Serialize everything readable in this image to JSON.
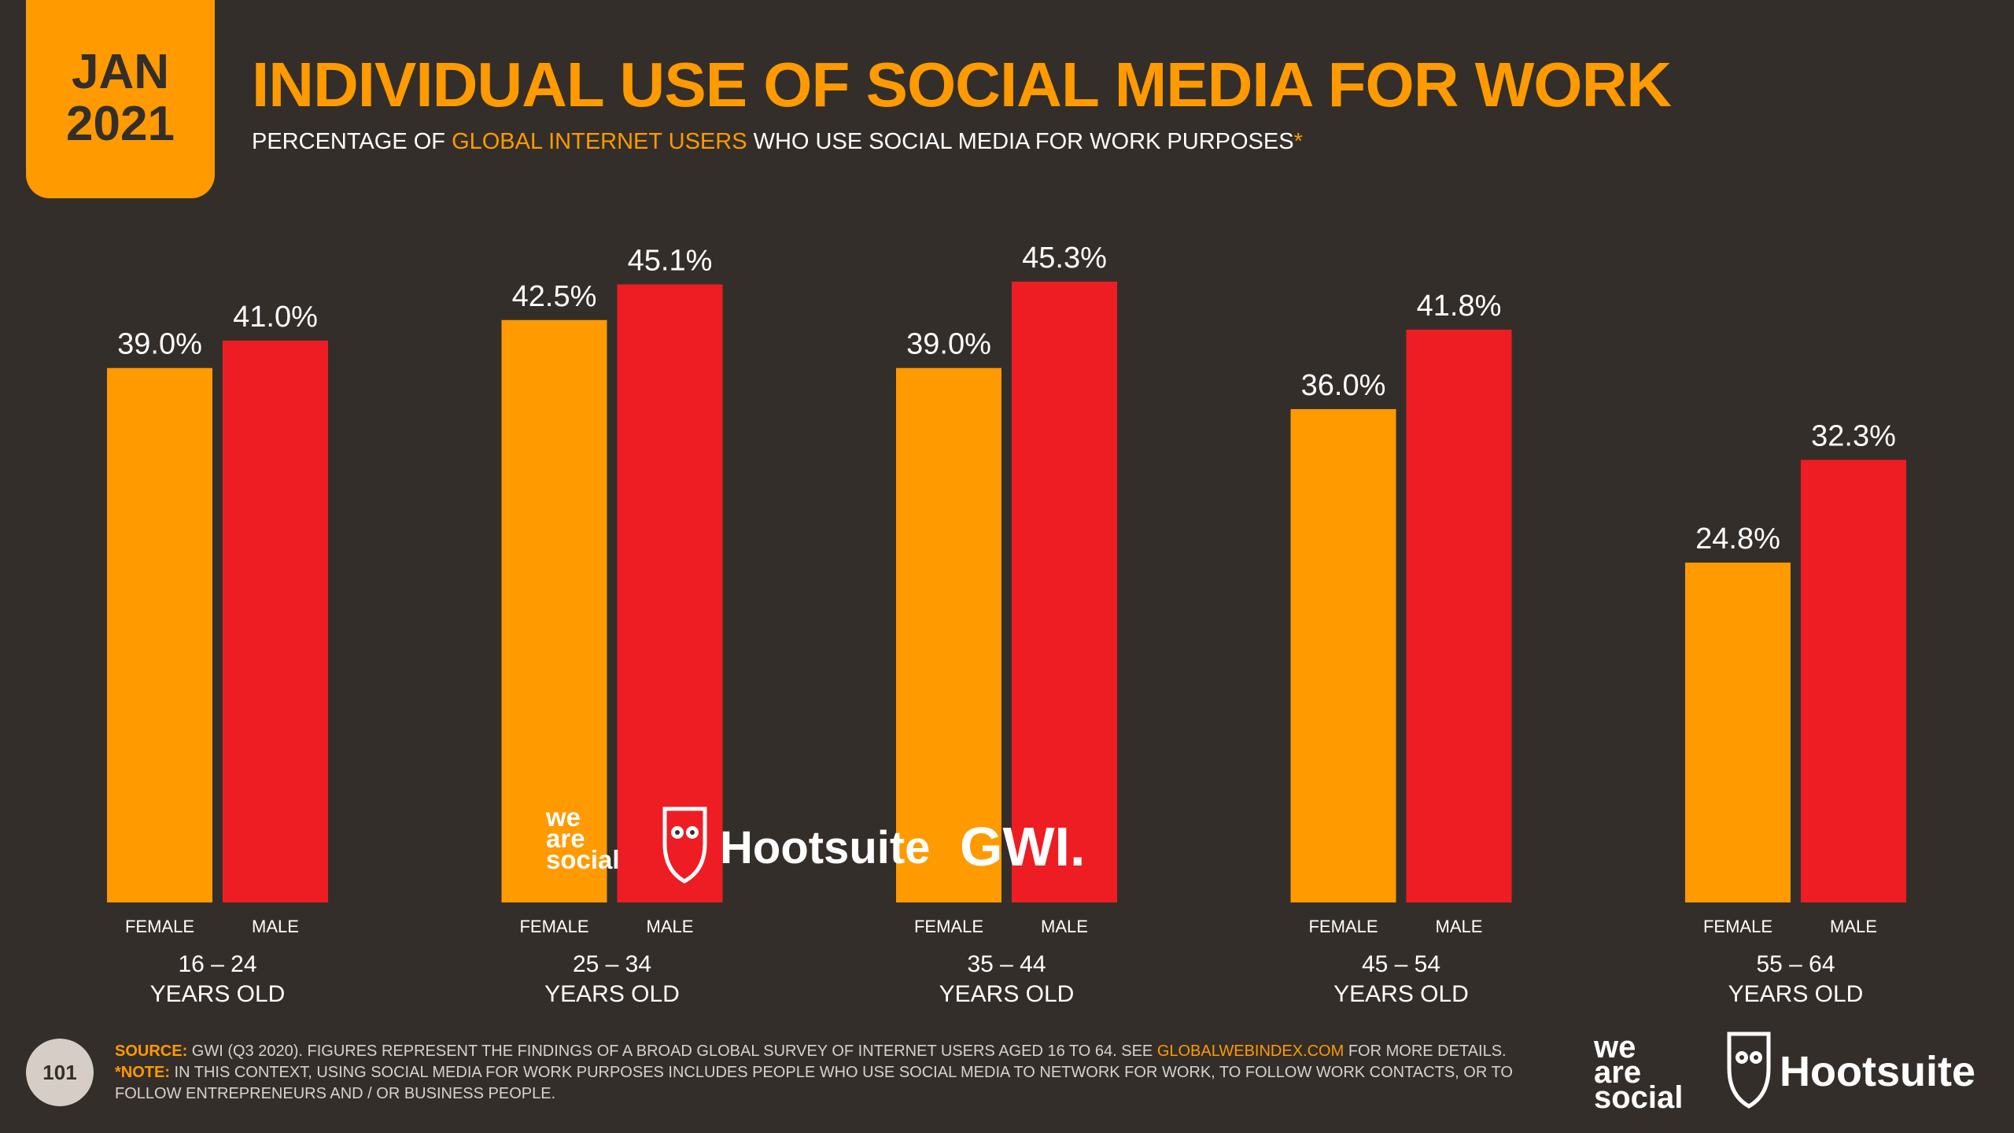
{
  "header": {
    "date_month": "JAN",
    "date_year": "2021",
    "title": "INDIVIDUAL USE OF SOCIAL MEDIA FOR WORK",
    "subtitle_pre": "PERCENTAGE OF ",
    "subtitle_highlight": "GLOBAL INTERNET USERS",
    "subtitle_post": " WHO USE SOCIAL MEDIA FOR WORK PURPOSES",
    "subtitle_asterisk": "*"
  },
  "colors": {
    "background": "#342e2a",
    "female": "#ff9a00",
    "male": "#ee1d23",
    "accent": "#ff9a00"
  },
  "chart_data": {
    "type": "bar",
    "categories": [
      "16 – 24",
      "25 – 34",
      "35 – 44",
      "45 – 54",
      "55 – 64"
    ],
    "category_suffix": "YEARS OLD",
    "series": [
      {
        "name": "FEMALE",
        "values": [
          39.0,
          42.5,
          39.0,
          36.0,
          24.8
        ],
        "labels": [
          "39.0%",
          "42.5%",
          "39.0%",
          "36.0%",
          "24.8%"
        ]
      },
      {
        "name": "MALE",
        "values": [
          41.0,
          45.1,
          45.3,
          41.8,
          32.3
        ],
        "labels": [
          "41.0%",
          "45.1%",
          "45.3%",
          "41.8%",
          "32.3%"
        ]
      }
    ],
    "ylim": [
      0,
      45.3
    ],
    "grid": false,
    "legend": "none"
  },
  "watermark": {
    "weare_line1": "we",
    "weare_line2": "are",
    "weare_line3": "social",
    "hootsuite": "Hootsuite",
    "gwi": "GWI."
  },
  "footer": {
    "source_label": "SOURCE:",
    "source_text_pre": " GWI (Q3 2020). FIGURES REPRESENT THE FINDINGS OF A BROAD GLOBAL SURVEY OF INTERNET USERS AGED 16 TO 64. SEE ",
    "source_link": "GLOBALWEBINDEX.COM",
    "source_text_post": " FOR MORE DETAILS.",
    "note_label": "*NOTE:",
    "note_text": " IN THIS CONTEXT, USING SOCIAL MEDIA FOR WORK PURPOSES INCLUDES PEOPLE WHO USE SOCIAL MEDIA TO NETWORK FOR WORK, TO FOLLOW WORK CONTACTS, OR TO FOLLOW ENTREPRENEURS AND / OR BUSINESS PEOPLE.",
    "page_number": "101"
  },
  "brand": {
    "weare_line1": "we",
    "weare_line2": "are",
    "weare_line3": "social",
    "hootsuite": "Hootsuite"
  }
}
